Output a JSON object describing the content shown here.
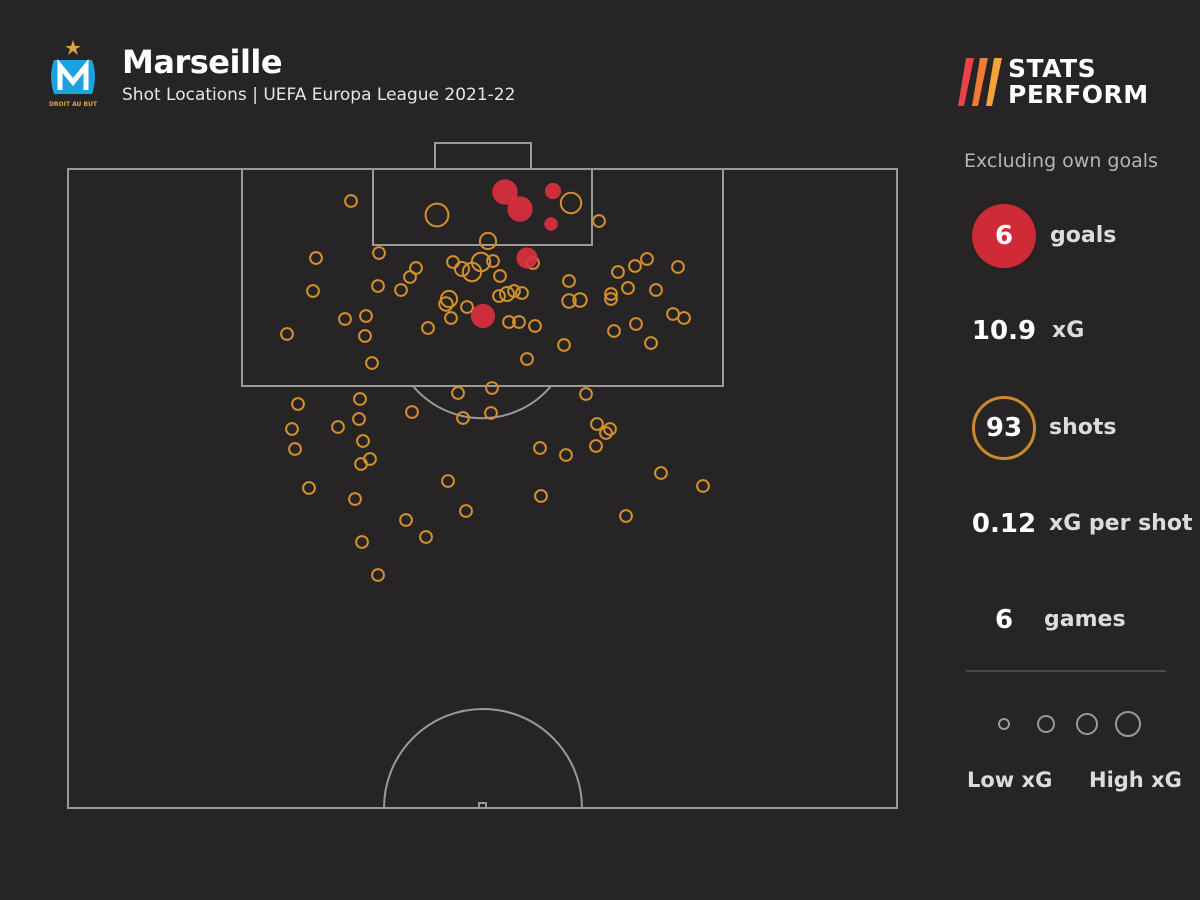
{
  "header": {
    "team": "Marseille",
    "subtitle": "Shot Locations | UEFA Europa League 2021-22",
    "badge_text": "DROIT AU BUT"
  },
  "brand": {
    "line1": "STATS",
    "line2": "PERFORM",
    "colors": [
      "#e8434b",
      "#f07a3a",
      "#f6a23a"
    ]
  },
  "colors": {
    "background": "#262424",
    "pitch_lines": "#9a9a9a",
    "goal": "#e0303f",
    "shot": "#d4902a",
    "badge": "#1aa3dc"
  },
  "sidebar": {
    "note": "Excluding own goals",
    "goals": {
      "value": "6",
      "label": "goals"
    },
    "xg": {
      "value": "10.9",
      "label": "xG"
    },
    "shots": {
      "value": "93",
      "label": "shots"
    },
    "xg_per_shot": {
      "value": "0.12",
      "label": "xG per shot"
    },
    "games": {
      "value": "6",
      "label": "games"
    },
    "legend": {
      "low": "Low xG",
      "high": "High xG"
    }
  },
  "chart_data": {
    "type": "scatter",
    "title": "Marseille",
    "subtitle": "Shot Locations | UEFA Europa League 2021-22",
    "x_axis": "pitch width",
    "y_axis": "distance from goal line",
    "size_encodes": "xG",
    "legend": [
      "Low xG",
      "High xG"
    ],
    "series": [
      {
        "name": "goals",
        "points": [
          [
            505,
            192,
            0.75
          ],
          [
            520,
            209,
            0.75
          ],
          [
            553,
            191,
            0.2
          ],
          [
            527,
            258,
            0.45
          ],
          [
            483,
            316,
            0.65
          ],
          [
            551,
            224,
            0.1
          ]
        ]
      },
      {
        "name": "shots",
        "points": [
          [
            437,
            215,
            0.55
          ],
          [
            571,
            203,
            0.4
          ],
          [
            351,
            201,
            0.06
          ],
          [
            599,
            221,
            0.06
          ],
          [
            488,
            241,
            0.2
          ],
          [
            481,
            262,
            0.3
          ],
          [
            472,
            272,
            0.3
          ],
          [
            462,
            269,
            0.12
          ],
          [
            453,
            262,
            0.06
          ],
          [
            493,
            261,
            0.06
          ],
          [
            533,
            263,
            0.06
          ],
          [
            500,
            276,
            0.06
          ],
          [
            416,
            268,
            0.06
          ],
          [
            410,
            277,
            0.06
          ],
          [
            379,
            253,
            0.06
          ],
          [
            316,
            258,
            0.06
          ],
          [
            313,
            291,
            0.06
          ],
          [
            378,
            286,
            0.06
          ],
          [
            401,
            290,
            0.06
          ],
          [
            449,
            299,
            0.2
          ],
          [
            446,
            304,
            0.1
          ],
          [
            507,
            294,
            0.12
          ],
          [
            514,
            291,
            0.06
          ],
          [
            522,
            293,
            0.06
          ],
          [
            499,
            296,
            0.06
          ],
          [
            451,
            318,
            0.06
          ],
          [
            467,
            307,
            0.06
          ],
          [
            509,
            322,
            0.06
          ],
          [
            519,
            322,
            0.06
          ],
          [
            535,
            326,
            0.06
          ],
          [
            428,
            328,
            0.06
          ],
          [
            345,
            319,
            0.06
          ],
          [
            366,
            316,
            0.06
          ],
          [
            365,
            336,
            0.06
          ],
          [
            287,
            334,
            0.06
          ],
          [
            372,
            363,
            0.06
          ],
          [
            527,
            359,
            0.06
          ],
          [
            564,
            345,
            0.06
          ],
          [
            614,
            331,
            0.06
          ],
          [
            569,
            301,
            0.1
          ],
          [
            580,
            300,
            0.1
          ],
          [
            569,
            281,
            0.06
          ],
          [
            611,
            294,
            0.06
          ],
          [
            611,
            299,
            0.06
          ],
          [
            618,
            272,
            0.06
          ],
          [
            628,
            288,
            0.06
          ],
          [
            635,
            266,
            0.06
          ],
          [
            647,
            259,
            0.06
          ],
          [
            656,
            290,
            0.06
          ],
          [
            678,
            267,
            0.06
          ],
          [
            673,
            314,
            0.06
          ],
          [
            684,
            318,
            0.06
          ],
          [
            636,
            324,
            0.06
          ],
          [
            651,
            343,
            0.06
          ],
          [
            298,
            404,
            0.06
          ],
          [
            360,
            399,
            0.06
          ],
          [
            359,
            419,
            0.06
          ],
          [
            338,
            427,
            0.06
          ],
          [
            292,
            429,
            0.06
          ],
          [
            363,
            441,
            0.06
          ],
          [
            295,
            449,
            0.06
          ],
          [
            361,
            464,
            0.06
          ],
          [
            370,
            459,
            0.06
          ],
          [
            412,
            412,
            0.06
          ],
          [
            458,
            393,
            0.06
          ],
          [
            492,
            388,
            0.06
          ],
          [
            463,
            418,
            0.06
          ],
          [
            491,
            413,
            0.06
          ],
          [
            586,
            394,
            0.06
          ],
          [
            597,
            424,
            0.06
          ],
          [
            606,
            433,
            0.06
          ],
          [
            610,
            429,
            0.06
          ],
          [
            596,
            446,
            0.06
          ],
          [
            566,
            455,
            0.06
          ],
          [
            540,
            448,
            0.06
          ],
          [
            448,
            481,
            0.06
          ],
          [
            466,
            511,
            0.06
          ],
          [
            541,
            496,
            0.06
          ],
          [
            309,
            488,
            0.06
          ],
          [
            355,
            499,
            0.06
          ],
          [
            406,
            520,
            0.06
          ],
          [
            426,
            537,
            0.06
          ],
          [
            362,
            542,
            0.06
          ],
          [
            378,
            575,
            0.06
          ],
          [
            626,
            516,
            0.06
          ],
          [
            661,
            473,
            0.06
          ],
          [
            703,
            486,
            0.06
          ]
        ]
      }
    ]
  }
}
